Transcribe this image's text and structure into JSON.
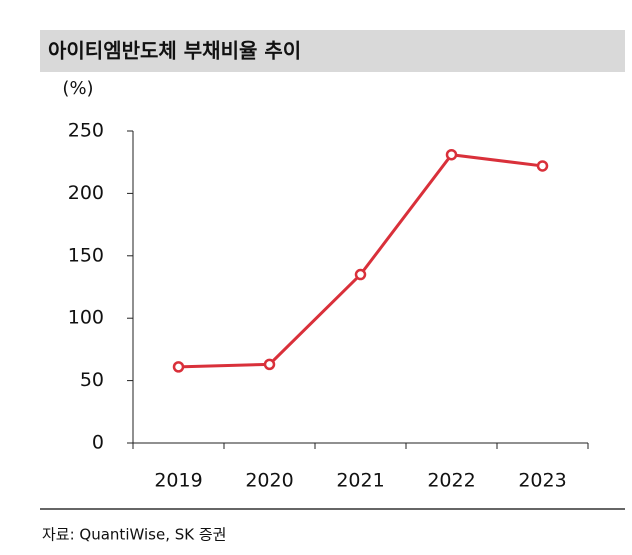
{
  "chart_data": {
    "type": "line",
    "title": "아이티엠반도체 부채비율 추이",
    "y_label": "(%)",
    "categories": [
      "2019",
      "2020",
      "2021",
      "2022",
      "2023"
    ],
    "values": [
      61,
      63,
      135,
      231,
      222
    ],
    "color": "#d9303a",
    "ylim": [
      0,
      250
    ],
    "yticks": [
      0,
      50,
      100,
      150,
      200,
      250
    ],
    "grid": false,
    "source": "자료: QuantiWise, SK 증권"
  }
}
